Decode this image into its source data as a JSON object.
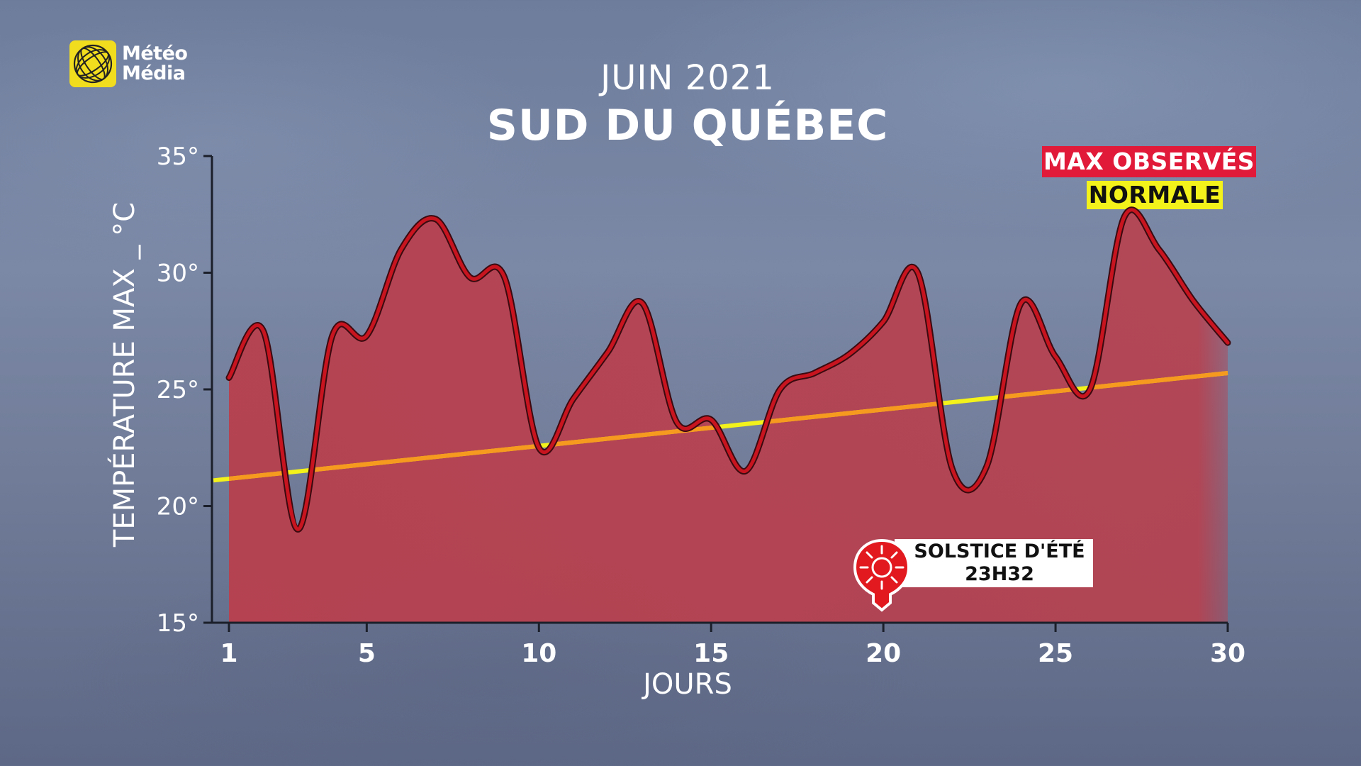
{
  "logo": {
    "line1": "Météo",
    "line2": "Média",
    "color": "#f2dc1e"
  },
  "title": {
    "month": "JUIN 2021",
    "region": "SUD DU QUÉBEC"
  },
  "legend": {
    "max_label": "MAX OBSERVÉS",
    "max_color": "#e21a3a",
    "normal_label": "NORMALE",
    "normal_color": "#f3f21a"
  },
  "annotation": {
    "line1": "SOLSTICE D'ÉTÉ",
    "line2": "23H32",
    "day": 20,
    "icon": "sun-pin-icon"
  },
  "chart_data": {
    "type": "area",
    "ylabel": "TEMPÉRATURE MAX _ °C",
    "xlabel": "JOURS",
    "ylim": [
      15,
      35
    ],
    "xlim": [
      1,
      30
    ],
    "yticks": [
      15,
      20,
      25,
      30,
      35
    ],
    "ytick_labels": [
      "15°",
      "20°",
      "25°",
      "30°",
      "35°"
    ],
    "xticks": [
      1,
      5,
      10,
      15,
      20,
      25,
      30
    ],
    "xtick_labels": [
      "1",
      "5",
      "10",
      "15",
      "20",
      "25",
      "30"
    ],
    "series": [
      {
        "name": "MAX OBSERVÉS",
        "color": "#c8141e",
        "fill": "#b8404e",
        "x": [
          1,
          2,
          3,
          4,
          5,
          6,
          7,
          8,
          9,
          10,
          11,
          12,
          13,
          14,
          15,
          16,
          17,
          18,
          19,
          20,
          21,
          22,
          23,
          24,
          25,
          26,
          27,
          28,
          29,
          30
        ],
        "values": [
          25.5,
          27.5,
          19.0,
          27.3,
          27.3,
          31.0,
          32.3,
          29.8,
          29.8,
          22.5,
          24.6,
          26.6,
          28.7,
          23.6,
          23.7,
          21.5,
          25.0,
          25.7,
          26.5,
          27.9,
          30.0,
          21.6,
          21.7,
          28.7,
          26.4,
          25.0,
          32.4,
          31.0,
          28.8,
          27.0
        ]
      },
      {
        "name": "NORMALE",
        "color": "#f3f21a",
        "x": [
          0.55,
          30
        ],
        "values": [
          21.1,
          25.7
        ]
      }
    ]
  }
}
